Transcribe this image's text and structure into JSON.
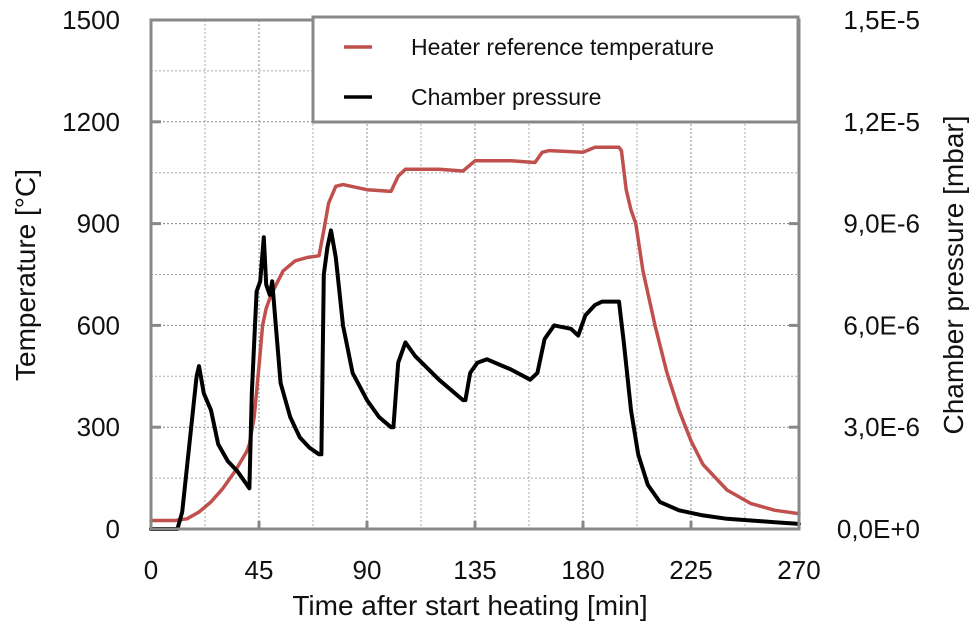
{
  "chart_data": {
    "type": "line",
    "title": "",
    "xlabel": "Time after start heating [min]",
    "ylabel": "Temperature [°C]",
    "y2label": "Chamber pressure [mbar]",
    "xlim": [
      0,
      270
    ],
    "ylim": [
      0,
      1500
    ],
    "y2lim": [
      0,
      1.5e-05
    ],
    "xticks": [
      0,
      45,
      90,
      135,
      180,
      225,
      270
    ],
    "xtick_labels": [
      "0",
      "45",
      "90",
      "135",
      "180",
      "225",
      "270"
    ],
    "yticks": [
      0,
      300,
      600,
      900,
      1200,
      1500
    ],
    "ytick_labels": [
      "0",
      "300",
      "600",
      "900",
      "1200",
      "1500"
    ],
    "y2ticks": [
      0,
      3e-06,
      6e-06,
      9e-06,
      1.2e-05,
      1.5e-05
    ],
    "y2tick_labels": [
      "0,0E+0",
      "3,0E-6",
      "6,0E-6",
      "9,0E-6",
      "1,2E-5",
      "1,5E-5"
    ],
    "grid": true,
    "minor_grid_x_step": 22.5,
    "minor_grid_y_step": 150,
    "legend_position": "top-right",
    "series": [
      {
        "name": "Heater reference temperature",
        "axis": "left",
        "color": "#c0504d",
        "x": [
          0,
          10,
          15,
          20,
          25,
          30,
          35,
          40,
          41,
          43,
          45,
          46.5,
          48,
          50,
          55,
          60,
          65,
          70,
          72,
          74,
          77,
          80,
          90,
          100,
          103,
          106,
          120,
          130,
          135,
          150,
          160,
          163,
          166,
          180,
          185,
          195,
          196,
          198,
          200,
          202,
          205,
          210,
          215,
          220,
          225,
          230,
          240,
          250,
          260,
          270
        ],
        "y": [
          25,
          25,
          30,
          50,
          80,
          120,
          170,
          230,
          250,
          330,
          480,
          600,
          650,
          690,
          760,
          790,
          800,
          805,
          880,
          960,
          1010,
          1015,
          1000,
          995,
          1040,
          1060,
          1060,
          1055,
          1085,
          1085,
          1080,
          1110,
          1115,
          1110,
          1125,
          1125,
          1115,
          1000,
          940,
          900,
          760,
          600,
          460,
          350,
          260,
          190,
          115,
          75,
          55,
          45
        ]
      },
      {
        "name": "Chamber pressure",
        "axis": "right",
        "color": "#000000",
        "x": [
          0,
          11,
          13,
          16,
          19,
          20,
          22,
          25,
          28,
          32,
          36,
          40,
          41,
          42,
          44,
          45.5,
          47,
          48,
          49.5,
          50.5,
          52,
          54,
          58,
          62,
          66,
          70,
          71,
          72,
          73.5,
          75,
          77,
          80,
          84,
          90,
          95,
          100,
          101,
          103,
          106,
          110,
          120,
          130,
          131,
          133,
          136,
          140,
          150,
          158,
          161,
          164,
          168,
          175,
          178,
          181,
          185,
          188,
          195,
          197,
          200,
          203,
          207,
          212,
          220,
          230,
          240,
          250,
          260,
          270
        ],
        "y": [
          0,
          0,
          5e-07,
          2.5e-06,
          4.5e-06,
          4.8e-06,
          4e-06,
          3.5e-06,
          2.5e-06,
          2e-06,
          1.7e-06,
          1.3e-06,
          1.2e-06,
          4e-06,
          7e-06,
          7.3e-06,
          8.6e-06,
          7.2e-06,
          6.9e-06,
          7.3e-06,
          6e-06,
          4.3e-06,
          3.3e-06,
          2.7e-06,
          2.4e-06,
          2.2e-06,
          2.2e-06,
          7.5e-06,
          8.3e-06,
          8.8e-06,
          8e-06,
          6e-06,
          4.6e-06,
          3.8e-06,
          3.3e-06,
          3e-06,
          3e-06,
          4.9e-06,
          5.5e-06,
          5.1e-06,
          4.4e-06,
          3.8e-06,
          3.8e-06,
          4.6e-06,
          4.9e-06,
          5e-06,
          4.7e-06,
          4.4e-06,
          4.6e-06,
          5.6e-06,
          6e-06,
          5.9e-06,
          5.7e-06,
          6.3e-06,
          6.6e-06,
          6.7e-06,
          6.7e-06,
          5.5e-06,
          3.5e-06,
          2.2e-06,
          1.3e-06,
          8e-07,
          5.5e-07,
          4e-07,
          3e-07,
          2.5e-07,
          2e-07,
          1.5e-07
        ]
      }
    ]
  }
}
